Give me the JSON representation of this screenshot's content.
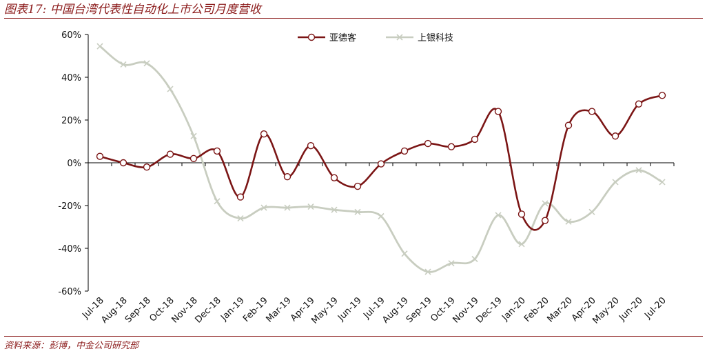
{
  "header": {
    "title": "图表17: 中国台湾代表性自动化上市公司月度营收"
  },
  "footer": {
    "source": "资料来源：彭博，中金公司研究部"
  },
  "chart_data": {
    "type": "line",
    "title": "图表17: 中国台湾代表性自动化上市公司月度营收",
    "xlabel": "",
    "ylabel": "",
    "ylim": [
      -60,
      60
    ],
    "yticks": [
      "60%",
      "40%",
      "20%",
      "0%",
      "-20%",
      "-40%",
      "-60%"
    ],
    "ytick_values": [
      60,
      40,
      20,
      0,
      -20,
      -40,
      -60
    ],
    "legend_position": "top-center",
    "grid": false,
    "categories": [
      "Jul-18",
      "Aug-18",
      "Sep-18",
      "Oct-18",
      "Nov-18",
      "Dec-18",
      "Jan-19",
      "Feb-19",
      "Mar-19",
      "Apr-19",
      "May-19",
      "Jun-19",
      "Jul-19",
      "Aug-19",
      "Sep-19",
      "Oct-19",
      "Nov-19",
      "Dec-19",
      "Jan-20",
      "Feb-20",
      "Mar-20",
      "Apr-20",
      "May-20",
      "Jun-20",
      "Jul-20"
    ],
    "series": [
      {
        "name": "亚德客",
        "color": "#7b1515",
        "marker": "circle",
        "values": [
          3,
          0,
          -2,
          4,
          2,
          5.5,
          -16,
          13.5,
          -6.5,
          8,
          -7,
          -11,
          -0.5,
          5.5,
          9,
          7.5,
          11,
          24,
          -24,
          -27,
          17.5,
          24,
          12.5,
          27.5,
          31.5
        ]
      },
      {
        "name": "上银科技",
        "color": "#c8cdc0",
        "marker": "x",
        "values": [
          54.5,
          46,
          46.5,
          34.5,
          12.5,
          -18,
          -26,
          -21,
          -21,
          -20.5,
          -22,
          -23,
          -25,
          -42.5,
          -51,
          -47,
          -45,
          -24.5,
          -38,
          -19,
          -27.5,
          -23,
          -9,
          -3.5,
          -9
        ]
      }
    ]
  }
}
